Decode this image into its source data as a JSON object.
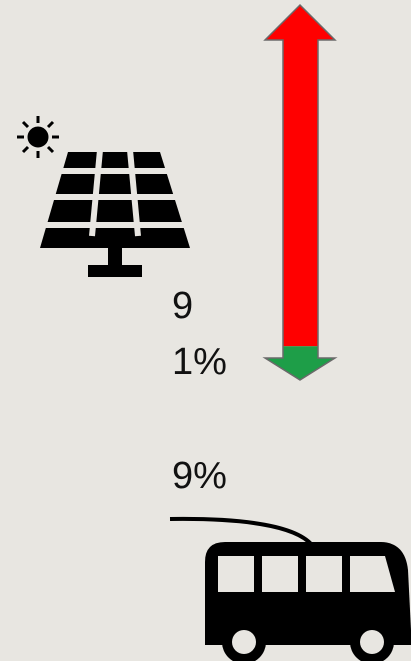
{
  "flow": {
    "values": [
      91,
      9
    ],
    "value_labels": [
      "91%",
      "9%"
    ],
    "colors": [
      "#ff0000",
      "#1e9e48"
    ]
  }
}
